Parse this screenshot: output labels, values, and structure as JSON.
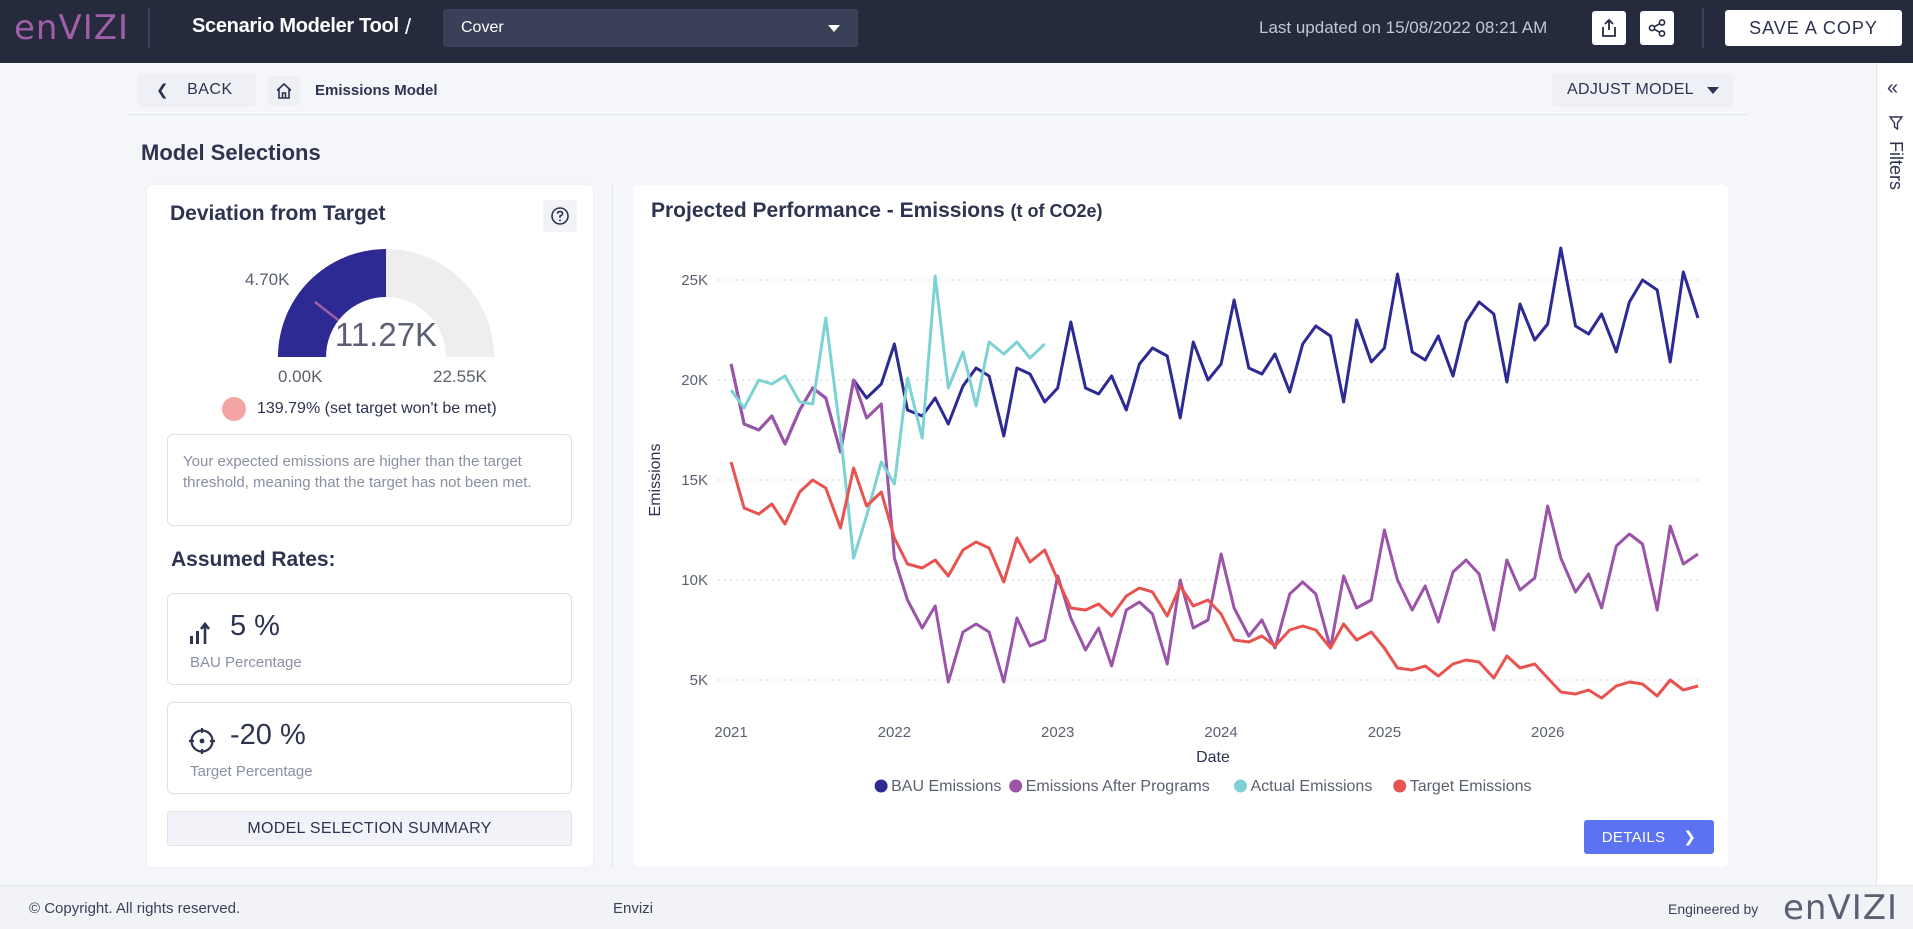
{
  "topbar": {
    "logo": "enVIZI",
    "app_title": "Scenario Modeler Tool",
    "separator": "/",
    "page_select": "Cover",
    "last_updated": "Last updated on 15/08/2022 08:21 AM",
    "share_icon": "upload-share-icon",
    "network_icon": "share-network-icon",
    "save_copy": "SAVE A COPY"
  },
  "breadcrumb": {
    "back": "BACK",
    "home_icon": "home-icon",
    "current": "Emissions Model",
    "adjust": "ADJUST MODEL"
  },
  "section_title": "Model Selections",
  "rail": {
    "filters": "Filters"
  },
  "deviation": {
    "title": "Deviation from Target",
    "gauge_value": "11.27K",
    "gauge_min": "0.00K",
    "gauge_max": "22.55K",
    "gauge_target": "4.70K",
    "gauge_fraction": 0.5,
    "target_fraction": 0.21,
    "status_percent": "139.79%",
    "status_text": "(set target won't be met)",
    "status_color": "#f4a5a3",
    "message": "Your expected emissions are higher than the target threshold, meaning that the target has not been met."
  },
  "rates": {
    "title": "Assumed Rates:",
    "bau_value": "5 %",
    "bau_label": "BAU Percentage",
    "target_value": "-20 %",
    "target_label": "Target Percentage"
  },
  "summary_button": "MODEL SELECTION SUMMARY",
  "chart_card": {
    "title": "Projected Performance - Emissions",
    "unit": "(t of CO2e)",
    "details": "DETAILS"
  },
  "chart_data": {
    "type": "line",
    "xlabel": "Date",
    "ylabel": "Emissions",
    "ylim": [
      3500,
      27000
    ],
    "xlim": [
      2020.92,
      2026.92
    ],
    "y_ticks": [
      5000,
      10000,
      15000,
      20000,
      25000
    ],
    "y_tick_labels": [
      "5K",
      "10K",
      "15K",
      "20K",
      "25K"
    ],
    "x_ticks": [
      2021,
      2022,
      2023,
      2024,
      2025,
      2026
    ],
    "x_tick_labels": [
      "2021",
      "2022",
      "2023",
      "2024",
      "2025",
      "2026"
    ],
    "legend_position": "bottom",
    "grid": "horizontal-dotted",
    "series": [
      {
        "name": "BAU Emissions",
        "color": "#2e2a94",
        "x": [
          2021.0,
          2021.08,
          2021.17,
          2021.25,
          2021.33,
          2021.42,
          2021.5,
          2021.58,
          2021.67,
          2021.75,
          2021.83,
          2021.92,
          2022.0,
          2022.08,
          2022.17,
          2022.25,
          2022.33,
          2022.42,
          2022.5,
          2022.58,
          2022.67,
          2022.75,
          2022.83,
          2022.92,
          2023.0,
          2023.08,
          2023.17,
          2023.25,
          2023.33,
          2023.42,
          2023.5,
          2023.58,
          2023.67,
          2023.75,
          2023.83,
          2023.92,
          2024.0,
          2024.08,
          2024.17,
          2024.25,
          2024.33,
          2024.42,
          2024.5,
          2024.58,
          2024.67,
          2024.75,
          2024.83,
          2024.92,
          2025.0,
          2025.08,
          2025.17,
          2025.25,
          2025.33,
          2025.42,
          2025.5,
          2025.58,
          2025.67,
          2025.75,
          2025.83,
          2025.92,
          2026.0,
          2026.08,
          2026.17,
          2026.25,
          2026.33,
          2026.42,
          2026.5,
          2026.58,
          2026.67,
          2026.75,
          2026.83,
          2026.92
        ],
        "values": [
          20800,
          17800,
          17500,
          18200,
          16800,
          18500,
          19600,
          19100,
          16400,
          20000,
          19100,
          19800,
          21800,
          18500,
          18200,
          19100,
          17800,
          19700,
          20600,
          20200,
          17200,
          20600,
          20300,
          18900,
          19600,
          22900,
          19600,
          19300,
          20200,
          18500,
          20800,
          21600,
          21200,
          18100,
          21900,
          20000,
          20800,
          24000,
          20600,
          20300,
          21300,
          19400,
          21800,
          22700,
          22200,
          18900,
          23000,
          20900,
          21600,
          25300,
          21400,
          21000,
          22200,
          20200,
          22900,
          23900,
          23300,
          19900,
          23800,
          22000,
          22800,
          26600,
          22700,
          22300,
          23300,
          21400,
          23900,
          25000,
          24500,
          20900,
          25400,
          23100
        ]
      },
      {
        "name": "Emissions After Programs",
        "color": "#9a54a8",
        "x": [
          2021.0,
          2021.08,
          2021.17,
          2021.25,
          2021.33,
          2021.42,
          2021.5,
          2021.58,
          2021.67,
          2021.75,
          2021.83,
          2021.92,
          2022.0,
          2022.08,
          2022.17,
          2022.25,
          2022.33,
          2022.42,
          2022.5,
          2022.58,
          2022.67,
          2022.75,
          2022.83,
          2022.92,
          2023.0,
          2023.08,
          2023.17,
          2023.25,
          2023.33,
          2023.42,
          2023.5,
          2023.58,
          2023.67,
          2023.75,
          2023.83,
          2023.92,
          2024.0,
          2024.08,
          2024.17,
          2024.25,
          2024.33,
          2024.42,
          2024.5,
          2024.58,
          2024.67,
          2024.75,
          2024.83,
          2024.92,
          2025.0,
          2025.08,
          2025.17,
          2025.25,
          2025.33,
          2025.42,
          2025.5,
          2025.58,
          2025.67,
          2025.75,
          2025.83,
          2025.92,
          2026.0,
          2026.08,
          2026.17,
          2026.25,
          2026.33,
          2026.42,
          2026.5,
          2026.58,
          2026.67,
          2026.75,
          2026.83,
          2026.92
        ],
        "values": [
          20800,
          17800,
          17500,
          18200,
          16800,
          18500,
          19600,
          19100,
          16400,
          20000,
          18100,
          18800,
          11100,
          9000,
          7600,
          8700,
          4900,
          7400,
          7800,
          7400,
          4900,
          8100,
          6700,
          7000,
          10200,
          8100,
          6500,
          7600,
          5700,
          8500,
          8900,
          8300,
          5800,
          10000,
          7600,
          8000,
          11300,
          8600,
          7200,
          8000,
          6600,
          9300,
          9900,
          9300,
          6600,
          10200,
          8600,
          9000,
          12500,
          10000,
          8500,
          9700,
          7900,
          10400,
          11000,
          10300,
          7500,
          11000,
          9500,
          10100,
          13700,
          11100,
          9400,
          10300,
          8600,
          11700,
          12300,
          11800,
          8500,
          12700,
          10800,
          11300
        ]
      },
      {
        "name": "Actual Emissions",
        "color": "#7dd2d4",
        "x": [
          2021.0,
          2021.08,
          2021.17,
          2021.25,
          2021.33,
          2021.42,
          2021.5,
          2021.58,
          2021.67,
          2021.75,
          2021.83,
          2021.92,
          2022.0,
          2022.08,
          2022.17,
          2022.25,
          2022.33,
          2022.42,
          2022.5,
          2022.58,
          2022.67,
          2022.75,
          2022.83,
          2022.92
        ],
        "values": [
          19500,
          18600,
          20000,
          19800,
          20200,
          18900,
          18800,
          23100,
          17300,
          11100,
          13200,
          15900,
          14800,
          20100,
          17100,
          25200,
          19600,
          21400,
          18700,
          21900,
          21300,
          21900,
          21100,
          21800
        ]
      },
      {
        "name": "Target Emissions",
        "color": "#e8534f",
        "x": [
          2021.0,
          2021.08,
          2021.17,
          2021.25,
          2021.33,
          2021.42,
          2021.5,
          2021.58,
          2021.67,
          2021.75,
          2021.83,
          2021.92,
          2022.0,
          2022.08,
          2022.17,
          2022.25,
          2022.33,
          2022.42,
          2022.5,
          2022.58,
          2022.67,
          2022.75,
          2022.83,
          2022.92,
          2023.0,
          2023.08,
          2023.17,
          2023.25,
          2023.33,
          2023.42,
          2023.5,
          2023.58,
          2023.67,
          2023.75,
          2023.83,
          2023.92,
          2024.0,
          2024.08,
          2024.17,
          2024.25,
          2024.33,
          2024.42,
          2024.5,
          2024.58,
          2024.67,
          2024.75,
          2024.83,
          2024.92,
          2025.0,
          2025.08,
          2025.17,
          2025.25,
          2025.33,
          2025.42,
          2025.5,
          2025.58,
          2025.67,
          2025.75,
          2025.83,
          2025.92,
          2026.0,
          2026.08,
          2026.17,
          2026.25,
          2026.33,
          2026.42,
          2026.5,
          2026.58,
          2026.67,
          2026.75,
          2026.83,
          2026.92
        ],
        "values": [
          15900,
          13600,
          13300,
          13800,
          12800,
          14400,
          15000,
          14600,
          12600,
          15600,
          13700,
          14400,
          12100,
          10800,
          10600,
          11000,
          10200,
          11500,
          11900,
          11600,
          9900,
          12100,
          10900,
          11500,
          10000,
          8600,
          8500,
          8800,
          8200,
          9200,
          9600,
          9400,
          8200,
          9700,
          8700,
          9000,
          8300,
          7000,
          6900,
          7200,
          6700,
          7500,
          7700,
          7500,
          6600,
          7800,
          7000,
          7400,
          6600,
          5600,
          5500,
          5700,
          5200,
          5800,
          6000,
          5900,
          5100,
          6200,
          5600,
          5800,
          5100,
          4400,
          4300,
          4500,
          4100,
          4700,
          4900,
          4800,
          4200,
          5000,
          4500,
          4700
        ]
      }
    ]
  },
  "footer": {
    "copyright": "© Copyright. All rights reserved.",
    "center": "Envizi",
    "engineered": "Engineered by",
    "logo": "enVIZI"
  }
}
